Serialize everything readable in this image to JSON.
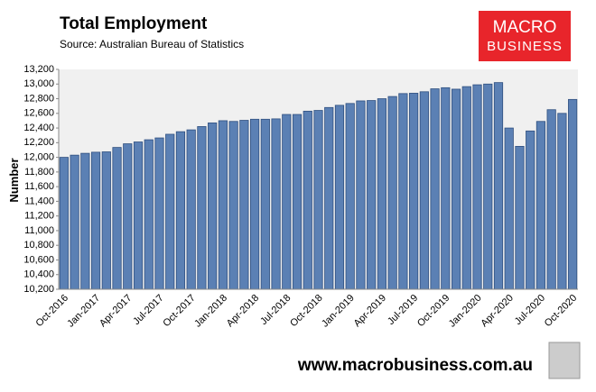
{
  "chart_data": {
    "type": "bar",
    "title": "Total Employment",
    "subtitle": "Source: Australian Bureau of Statistics",
    "y_label": "Number",
    "logo": [
      "MACRO",
      "BUSINESS"
    ],
    "footer": "www.macrobusiness.com.au",
    "categories": [
      "Oct-2016",
      null,
      null,
      "Jan-2017",
      null,
      null,
      "Apr-2017",
      null,
      null,
      "Jul-2017",
      null,
      null,
      "Oct-2017",
      null,
      null,
      "Jan-2018",
      null,
      null,
      "Apr-2018",
      null,
      null,
      "Jul-2018",
      null,
      null,
      "Oct-2018",
      null,
      null,
      "Jan-2019",
      null,
      null,
      "Apr-2019",
      null,
      null,
      "Jul-2019",
      null,
      null,
      "Oct-2019",
      null,
      null,
      "Jan-2020",
      null,
      null,
      "Apr-2020",
      null,
      null,
      "Jul-2020",
      null,
      null,
      "Oct-2020"
    ],
    "values": [
      12000,
      12030,
      12055,
      12070,
      12075,
      12135,
      12185,
      12210,
      12240,
      12265,
      12315,
      12350,
      12375,
      12420,
      12470,
      12500,
      12490,
      12505,
      12520,
      12520,
      12525,
      12585,
      12585,
      12630,
      12640,
      12680,
      12710,
      12735,
      12770,
      12775,
      12800,
      12830,
      12870,
      12875,
      12895,
      12935,
      12950,
      12930,
      12965,
      12990,
      13000,
      13020,
      12400,
      12150,
      12360,
      12490,
      12650,
      12600,
      12790
    ],
    "color": "#5b80b4",
    "ylim": [
      10200,
      13200
    ],
    "yticks": [
      {
        "value": 10200,
        "label": "10,200"
      },
      {
        "value": 10400,
        "label": "10,400"
      },
      {
        "value": 10600,
        "label": "10,600"
      },
      {
        "value": 10800,
        "label": "10,800"
      },
      {
        "value": 11000,
        "label": "11,000"
      },
      {
        "value": 11200,
        "label": "11,200"
      },
      {
        "value": 11400,
        "label": "11,400"
      },
      {
        "value": 11600,
        "label": "11,600"
      },
      {
        "value": 11800,
        "label": "11,800"
      },
      {
        "value": 12000,
        "label": "12,000"
      },
      {
        "value": 12200,
        "label": "12,200"
      },
      {
        "value": 12400,
        "label": "12,400"
      },
      {
        "value": 12600,
        "label": "12,600"
      },
      {
        "value": 12800,
        "label": "12,800"
      },
      {
        "value": 13000,
        "label": "13,000"
      },
      {
        "value": 13200,
        "label": "13,200"
      }
    ],
    "grid": false
  }
}
